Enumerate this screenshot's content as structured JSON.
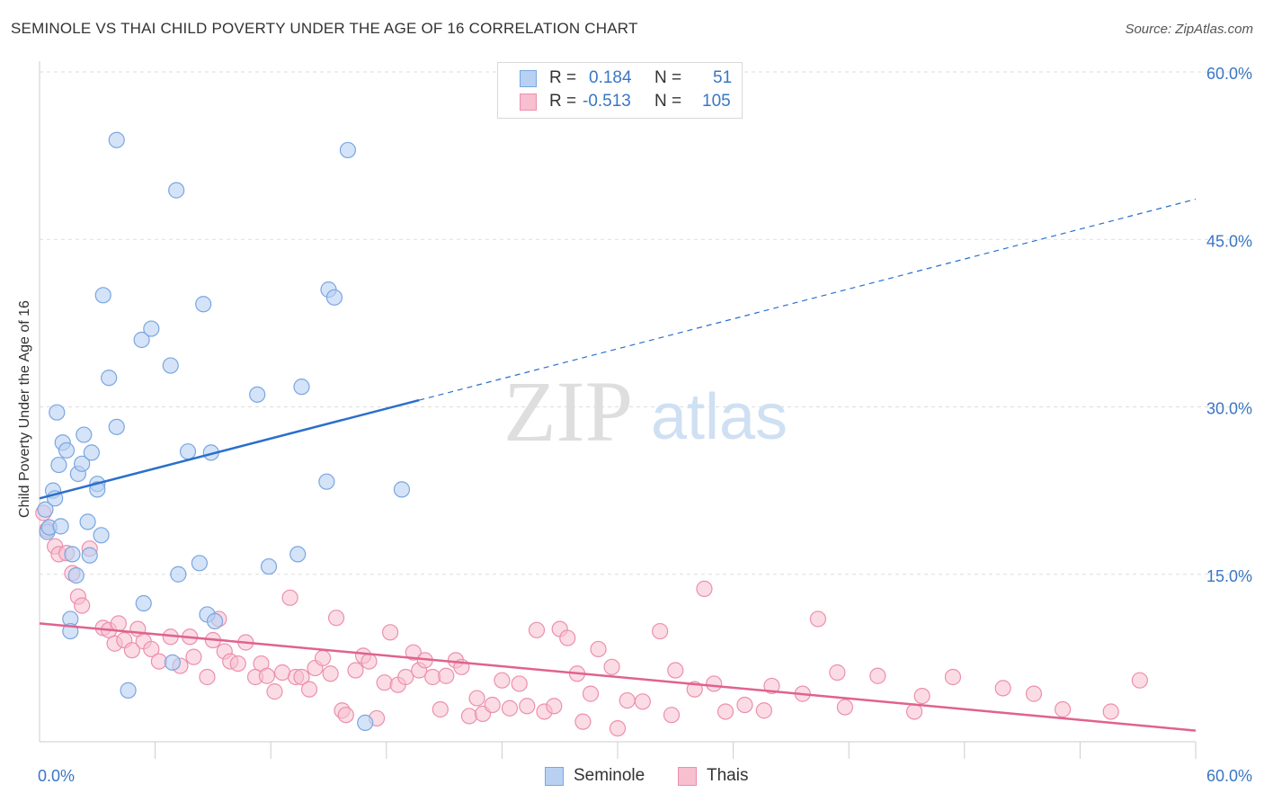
{
  "header": {
    "title": "SEMINOLE VS THAI CHILD POVERTY UNDER THE AGE OF 16 CORRELATION CHART",
    "source": "Source: ZipAtlas.com"
  },
  "watermark": {
    "zip": "ZIP",
    "atlas": "atlas"
  },
  "legend": {
    "r_label": "R =",
    "n_label": "N =",
    "rows": [
      {
        "r": "0.184",
        "n": "51"
      },
      {
        "r": "-0.513",
        "n": "105"
      }
    ]
  },
  "bottom_legend": {
    "items": [
      {
        "label": "Seminole"
      },
      {
        "label": "Thais"
      }
    ]
  },
  "colors": {
    "seminole_fill": "#b8d1f3",
    "seminole_stroke": "#7aa6e0",
    "seminole_line": "#2a6fcc",
    "thais_fill": "#f7bfd0",
    "thais_stroke": "#ec8fae",
    "thais_line": "#e0628f",
    "tick_label": "#3a76c4",
    "grid": "#dddddd"
  },
  "chart_data": {
    "type": "scatter",
    "title": "SEMINOLE VS THAI CHILD POVERTY UNDER THE AGE OF 16 CORRELATION CHART",
    "xlabel": "",
    "ylabel": "Child Poverty Under the Age of 16",
    "xlim": [
      0,
      60
    ],
    "ylim": [
      0,
      60
    ],
    "x_tick_labels": [
      "0.0%",
      "60.0%"
    ],
    "y_ticks": [
      15,
      30,
      45,
      60
    ],
    "y_tick_labels": [
      "15.0%",
      "30.0%",
      "45.0%",
      "60.0%"
    ],
    "grid": true,
    "legend_position": "top-center",
    "series": [
      {
        "name": "Seminole",
        "r": 0.184,
        "n": 51,
        "trend": {
          "x_start": 0,
          "y_start": 21.8,
          "x_solid_end": 19.7,
          "y_solid_end": 30.6,
          "x_end": 60,
          "y_end": 48.6
        },
        "points": [
          [
            0.3,
            20.8
          ],
          [
            0.4,
            18.8
          ],
          [
            0.5,
            19.2
          ],
          [
            0.7,
            22.5
          ],
          [
            0.8,
            21.8
          ],
          [
            0.9,
            29.5
          ],
          [
            1.0,
            24.8
          ],
          [
            1.1,
            19.3
          ],
          [
            1.2,
            26.8
          ],
          [
            1.4,
            26.1
          ],
          [
            1.6,
            11.0
          ],
          [
            1.6,
            9.9
          ],
          [
            1.7,
            16.8
          ],
          [
            1.9,
            14.9
          ],
          [
            2.0,
            24.0
          ],
          [
            2.2,
            24.9
          ],
          [
            2.3,
            27.5
          ],
          [
            2.5,
            19.7
          ],
          [
            2.6,
            16.7
          ],
          [
            2.7,
            25.9
          ],
          [
            3.0,
            23.1
          ],
          [
            3.0,
            22.6
          ],
          [
            3.2,
            18.5
          ],
          [
            3.3,
            40.0
          ],
          [
            3.6,
            32.6
          ],
          [
            4.0,
            53.9
          ],
          [
            4.0,
            28.2
          ],
          [
            4.6,
            4.6
          ],
          [
            5.3,
            36.0
          ],
          [
            5.4,
            12.4
          ],
          [
            5.8,
            37.0
          ],
          [
            6.8,
            33.7
          ],
          [
            6.9,
            7.1
          ],
          [
            7.1,
            49.4
          ],
          [
            7.2,
            15.0
          ],
          [
            7.7,
            26.0
          ],
          [
            8.3,
            16.0
          ],
          [
            8.5,
            39.2
          ],
          [
            8.7,
            11.4
          ],
          [
            8.9,
            25.9
          ],
          [
            9.1,
            10.8
          ],
          [
            11.3,
            31.1
          ],
          [
            11.9,
            15.7
          ],
          [
            13.4,
            16.8
          ],
          [
            13.6,
            31.8
          ],
          [
            14.9,
            23.3
          ],
          [
            15.0,
            40.5
          ],
          [
            15.3,
            39.8
          ],
          [
            16.0,
            53.0
          ],
          [
            16.9,
            1.7
          ],
          [
            18.8,
            22.6
          ]
        ]
      },
      {
        "name": "Thais",
        "r": -0.513,
        "n": 105,
        "trend": {
          "x_start": 0,
          "y_start": 10.6,
          "x_end": 60,
          "y_end": 1.0
        },
        "points": [
          [
            0.2,
            20.5
          ],
          [
            0.4,
            19.0
          ],
          [
            0.8,
            17.5
          ],
          [
            1.0,
            16.8
          ],
          [
            1.4,
            16.9
          ],
          [
            1.7,
            15.1
          ],
          [
            2.0,
            13.0
          ],
          [
            2.2,
            12.2
          ],
          [
            2.6,
            17.3
          ],
          [
            3.3,
            10.2
          ],
          [
            3.6,
            10.0
          ],
          [
            3.9,
            8.8
          ],
          [
            4.1,
            10.6
          ],
          [
            4.4,
            9.1
          ],
          [
            4.8,
            8.2
          ],
          [
            5.1,
            10.1
          ],
          [
            5.4,
            9.0
          ],
          [
            5.8,
            8.3
          ],
          [
            6.2,
            7.2
          ],
          [
            6.8,
            9.4
          ],
          [
            7.3,
            6.8
          ],
          [
            7.8,
            9.4
          ],
          [
            8.0,
            7.6
          ],
          [
            8.7,
            5.8
          ],
          [
            9.0,
            9.1
          ],
          [
            9.3,
            11.0
          ],
          [
            9.6,
            8.1
          ],
          [
            9.9,
            7.2
          ],
          [
            10.3,
            7.0
          ],
          [
            10.7,
            8.9
          ],
          [
            11.2,
            5.8
          ],
          [
            11.5,
            7.0
          ],
          [
            11.8,
            5.9
          ],
          [
            12.2,
            4.5
          ],
          [
            12.6,
            6.2
          ],
          [
            13.0,
            12.9
          ],
          [
            13.3,
            5.8
          ],
          [
            13.6,
            5.8
          ],
          [
            14.0,
            4.7
          ],
          [
            14.3,
            6.6
          ],
          [
            14.7,
            7.5
          ],
          [
            15.1,
            6.1
          ],
          [
            15.4,
            11.1
          ],
          [
            15.7,
            2.8
          ],
          [
            15.9,
            2.4
          ],
          [
            16.4,
            6.4
          ],
          [
            16.8,
            7.7
          ],
          [
            17.1,
            7.2
          ],
          [
            17.5,
            2.1
          ],
          [
            17.9,
            5.3
          ],
          [
            18.2,
            9.8
          ],
          [
            18.6,
            5.1
          ],
          [
            19.0,
            5.8
          ],
          [
            19.4,
            8.0
          ],
          [
            19.7,
            6.4
          ],
          [
            20.0,
            7.3
          ],
          [
            20.4,
            5.8
          ],
          [
            20.8,
            2.9
          ],
          [
            21.1,
            5.9
          ],
          [
            21.6,
            7.3
          ],
          [
            21.9,
            6.7
          ],
          [
            22.3,
            2.3
          ],
          [
            22.7,
            3.9
          ],
          [
            23.0,
            2.5
          ],
          [
            23.5,
            3.3
          ],
          [
            24.0,
            5.5
          ],
          [
            24.4,
            3.0
          ],
          [
            24.9,
            5.2
          ],
          [
            25.3,
            3.2
          ],
          [
            25.8,
            10.0
          ],
          [
            26.2,
            2.7
          ],
          [
            26.7,
            3.2
          ],
          [
            27.0,
            10.1
          ],
          [
            27.4,
            9.3
          ],
          [
            27.9,
            6.1
          ],
          [
            28.2,
            1.8
          ],
          [
            28.6,
            4.3
          ],
          [
            29.0,
            8.3
          ],
          [
            29.7,
            6.7
          ],
          [
            30.0,
            1.2
          ],
          [
            30.5,
            3.7
          ],
          [
            31.3,
            3.6
          ],
          [
            32.2,
            9.9
          ],
          [
            32.8,
            2.4
          ],
          [
            33.0,
            6.4
          ],
          [
            34.0,
            4.7
          ],
          [
            34.5,
            13.7
          ],
          [
            35.0,
            5.2
          ],
          [
            35.6,
            2.7
          ],
          [
            36.6,
            3.3
          ],
          [
            37.6,
            2.8
          ],
          [
            38.0,
            5.0
          ],
          [
            39.6,
            4.3
          ],
          [
            40.4,
            11.0
          ],
          [
            41.4,
            6.2
          ],
          [
            41.8,
            3.1
          ],
          [
            43.5,
            5.9
          ],
          [
            45.4,
            2.7
          ],
          [
            45.8,
            4.1
          ],
          [
            47.4,
            5.8
          ],
          [
            50.0,
            4.8
          ],
          [
            51.6,
            4.3
          ],
          [
            53.1,
            2.9
          ],
          [
            55.6,
            2.7
          ],
          [
            57.1,
            5.5
          ]
        ]
      }
    ]
  }
}
